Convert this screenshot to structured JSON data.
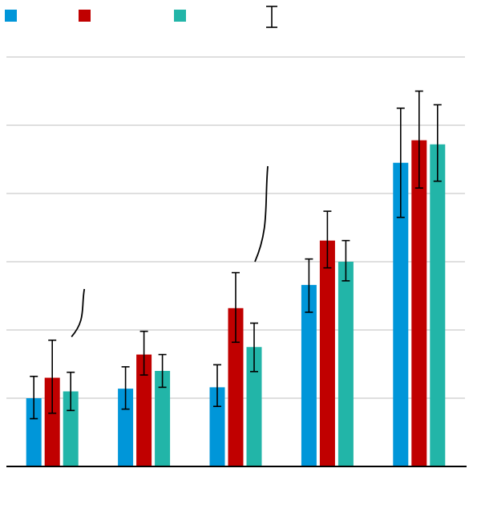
{
  "chart_data": {
    "type": "bar",
    "title": "",
    "xlabel": "",
    "ylabel": "",
    "ylim": [
      0,
      6
    ],
    "grid": true,
    "legend_placement": "top-left",
    "categories": [
      "",
      "",
      "",
      "",
      ""
    ],
    "series": [
      {
        "color": "#0096d9",
        "values": [
          1.0,
          1.14,
          1.16,
          2.66,
          4.45
        ],
        "err_low": [
          0.3,
          0.3,
          0.28,
          0.4,
          0.8
        ],
        "err_high": [
          0.32,
          0.32,
          0.33,
          0.38,
          0.8
        ]
      },
      {
        "color": "#c00000",
        "values": [
          1.3,
          1.64,
          2.32,
          3.31,
          4.78
        ],
        "err_low": [
          0.52,
          0.3,
          0.5,
          0.4,
          0.7
        ],
        "err_high": [
          0.55,
          0.34,
          0.52,
          0.43,
          0.72
        ]
      },
      {
        "color": "#22b5a8",
        "values": [
          1.1,
          1.4,
          1.75,
          3.0,
          4.72
        ],
        "err_low": [
          0.28,
          0.24,
          0.36,
          0.28,
          0.54
        ],
        "err_high": [
          0.28,
          0.24,
          0.35,
          0.31,
          0.58
        ]
      }
    ],
    "annotations": [
      {
        "type": "brace",
        "from_category": 0,
        "from_value": 1.9,
        "to_value": 2.6
      },
      {
        "type": "brace",
        "from_category": 2,
        "from_value": 3.0,
        "to_value": 4.4
      }
    ]
  }
}
